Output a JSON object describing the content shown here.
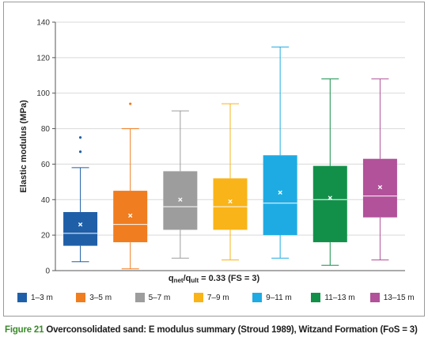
{
  "chart_data": {
    "type": "box",
    "title": "",
    "ylabel": "Elastic modulus (MPa)",
    "xlabel": {
      "q": "q",
      "net": "net",
      "slash": "/q",
      "ult": "ult",
      "rest": " = 0.33 (FS = 3)"
    },
    "ylim": [
      0,
      140
    ],
    "yticks": [
      0,
      20,
      40,
      60,
      80,
      100,
      120,
      140
    ],
    "grid": true,
    "legend_position": "bottom",
    "series": [
      {
        "name": "1–3 m",
        "color": "#1f5fa8",
        "min": 5,
        "q1": 14,
        "median": 21,
        "q3": 33,
        "max": 58,
        "mean": 26,
        "outliers": [
          67,
          75
        ]
      },
      {
        "name": "3–5 m",
        "color": "#f07d1f",
        "min": 1,
        "q1": 16,
        "median": 26,
        "q3": 45,
        "max": 80,
        "mean": 31,
        "outliers": [
          94
        ]
      },
      {
        "name": "5–7 m",
        "color": "#9d9d9d",
        "min": 7,
        "q1": 23,
        "median": 36,
        "q3": 56,
        "max": 90,
        "mean": 40,
        "outliers": []
      },
      {
        "name": "7–9 m",
        "color": "#f9b419",
        "min": 6,
        "q1": 23,
        "median": 36,
        "q3": 52,
        "max": 94,
        "mean": 39,
        "outliers": []
      },
      {
        "name": "9–11 m",
        "color": "#1eabe3",
        "min": 7,
        "q1": 20,
        "median": 38,
        "q3": 65,
        "max": 126,
        "mean": 44,
        "outliers": []
      },
      {
        "name": "11–13 m",
        "color": "#12904a",
        "min": 3,
        "q1": 16,
        "median": 40,
        "q3": 59,
        "max": 108,
        "mean": 41,
        "outliers": []
      },
      {
        "name": "13–15 m",
        "color": "#b1529a",
        "min": 6,
        "q1": 30,
        "median": 42,
        "q3": 63,
        "max": 108,
        "mean": 47,
        "outliers": []
      }
    ]
  },
  "caption": {
    "figure": "Figure 21",
    "text": "Overconsolidated sand: E modulus summary (Stroud 1989), Witzand Formation (FoS = 3)"
  }
}
